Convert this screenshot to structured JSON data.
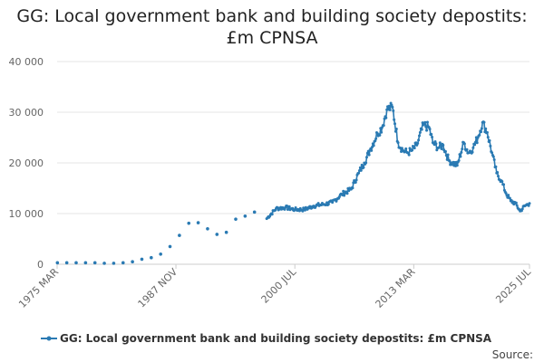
{
  "chart_data": {
    "type": "line",
    "title_line1": "GG: Local government bank and building society depostits:",
    "title_line2": "£m CPNSA",
    "xlabel": "",
    "ylabel": "",
    "ylim": [
      0,
      40000
    ],
    "y_ticks": [
      0,
      10000,
      20000,
      30000,
      40000
    ],
    "y_tick_labels": [
      "0",
      "10 000",
      "20 000",
      "30 000",
      "40 000"
    ],
    "x_range": [
      1975.17,
      2025.5
    ],
    "x_ticks": [
      1975.17,
      1987.83,
      2000.5,
      2013.17,
      2025.5
    ],
    "x_tick_labels": [
      "1975 MAR",
      "1987 NOV",
      "2000 JUL",
      "2013 MAR",
      "2025 JUL"
    ],
    "grid": "horizontal",
    "legend_position": "bottom",
    "series": [
      {
        "name": "GG: Local government bank and building society depostits: £m CPNSA",
        "color": "#2a7ab3",
        "annual_points": [
          [
            1975.2,
            300
          ],
          [
            1976.2,
            300
          ],
          [
            1977.2,
            300
          ],
          [
            1978.2,
            300
          ],
          [
            1979.2,
            300
          ],
          [
            1980.2,
            200
          ],
          [
            1981.2,
            200
          ],
          [
            1982.2,
            300
          ],
          [
            1983.2,
            500
          ],
          [
            1984.2,
            1000
          ],
          [
            1985.2,
            1300
          ],
          [
            1986.2,
            2000
          ],
          [
            1987.2,
            3500
          ],
          [
            1988.2,
            5700
          ],
          [
            1989.2,
            8100
          ],
          [
            1990.2,
            8200
          ],
          [
            1991.2,
            7000
          ],
          [
            1992.2,
            5900
          ],
          [
            1993.2,
            6300
          ],
          [
            1994.2,
            8900
          ],
          [
            1995.2,
            9500
          ],
          [
            1996.2,
            10300
          ]
        ],
        "monthly_anchors": [
          [
            1997.5,
            9000
          ],
          [
            1998.5,
            11000
          ],
          [
            1999.5,
            11200
          ],
          [
            2000.5,
            10800
          ],
          [
            2001.5,
            10800
          ],
          [
            2002.5,
            11500
          ],
          [
            2003.5,
            11800
          ],
          [
            2004.5,
            12200
          ],
          [
            2005.5,
            13800
          ],
          [
            2006.5,
            14800
          ],
          [
            2007.3,
            18000
          ],
          [
            2007.9,
            20000
          ],
          [
            2008.5,
            22500
          ],
          [
            2009.3,
            25800
          ],
          [
            2009.8,
            27000
          ],
          [
            2010.3,
            30500
          ],
          [
            2010.9,
            31000
          ],
          [
            2011.5,
            24000
          ],
          [
            2012.0,
            22500
          ],
          [
            2012.5,
            22000
          ],
          [
            2013.0,
            22500
          ],
          [
            2013.5,
            23500
          ],
          [
            2014.2,
            27500
          ],
          [
            2014.8,
            27000
          ],
          [
            2015.2,
            24000
          ],
          [
            2015.8,
            23000
          ],
          [
            2016.3,
            23500
          ],
          [
            2016.9,
            20500
          ],
          [
            2017.3,
            20000
          ],
          [
            2017.8,
            19500
          ],
          [
            2018.5,
            24000
          ],
          [
            2019.0,
            22000
          ],
          [
            2019.5,
            23000
          ],
          [
            2020.0,
            25000
          ],
          [
            2020.5,
            28000
          ],
          [
            2021.0,
            26000
          ],
          [
            2021.5,
            22000
          ],
          [
            2022.0,
            18000
          ],
          [
            2022.5,
            16500
          ],
          [
            2023.0,
            14000
          ],
          [
            2023.5,
            12500
          ],
          [
            2024.0,
            12000
          ],
          [
            2024.5,
            10500
          ],
          [
            2025.0,
            11500
          ],
          [
            2025.5,
            12000
          ]
        ]
      }
    ]
  },
  "legend_label": "GG: Local government bank and building society depostits: £m CPNSA",
  "source_label": "Source:"
}
